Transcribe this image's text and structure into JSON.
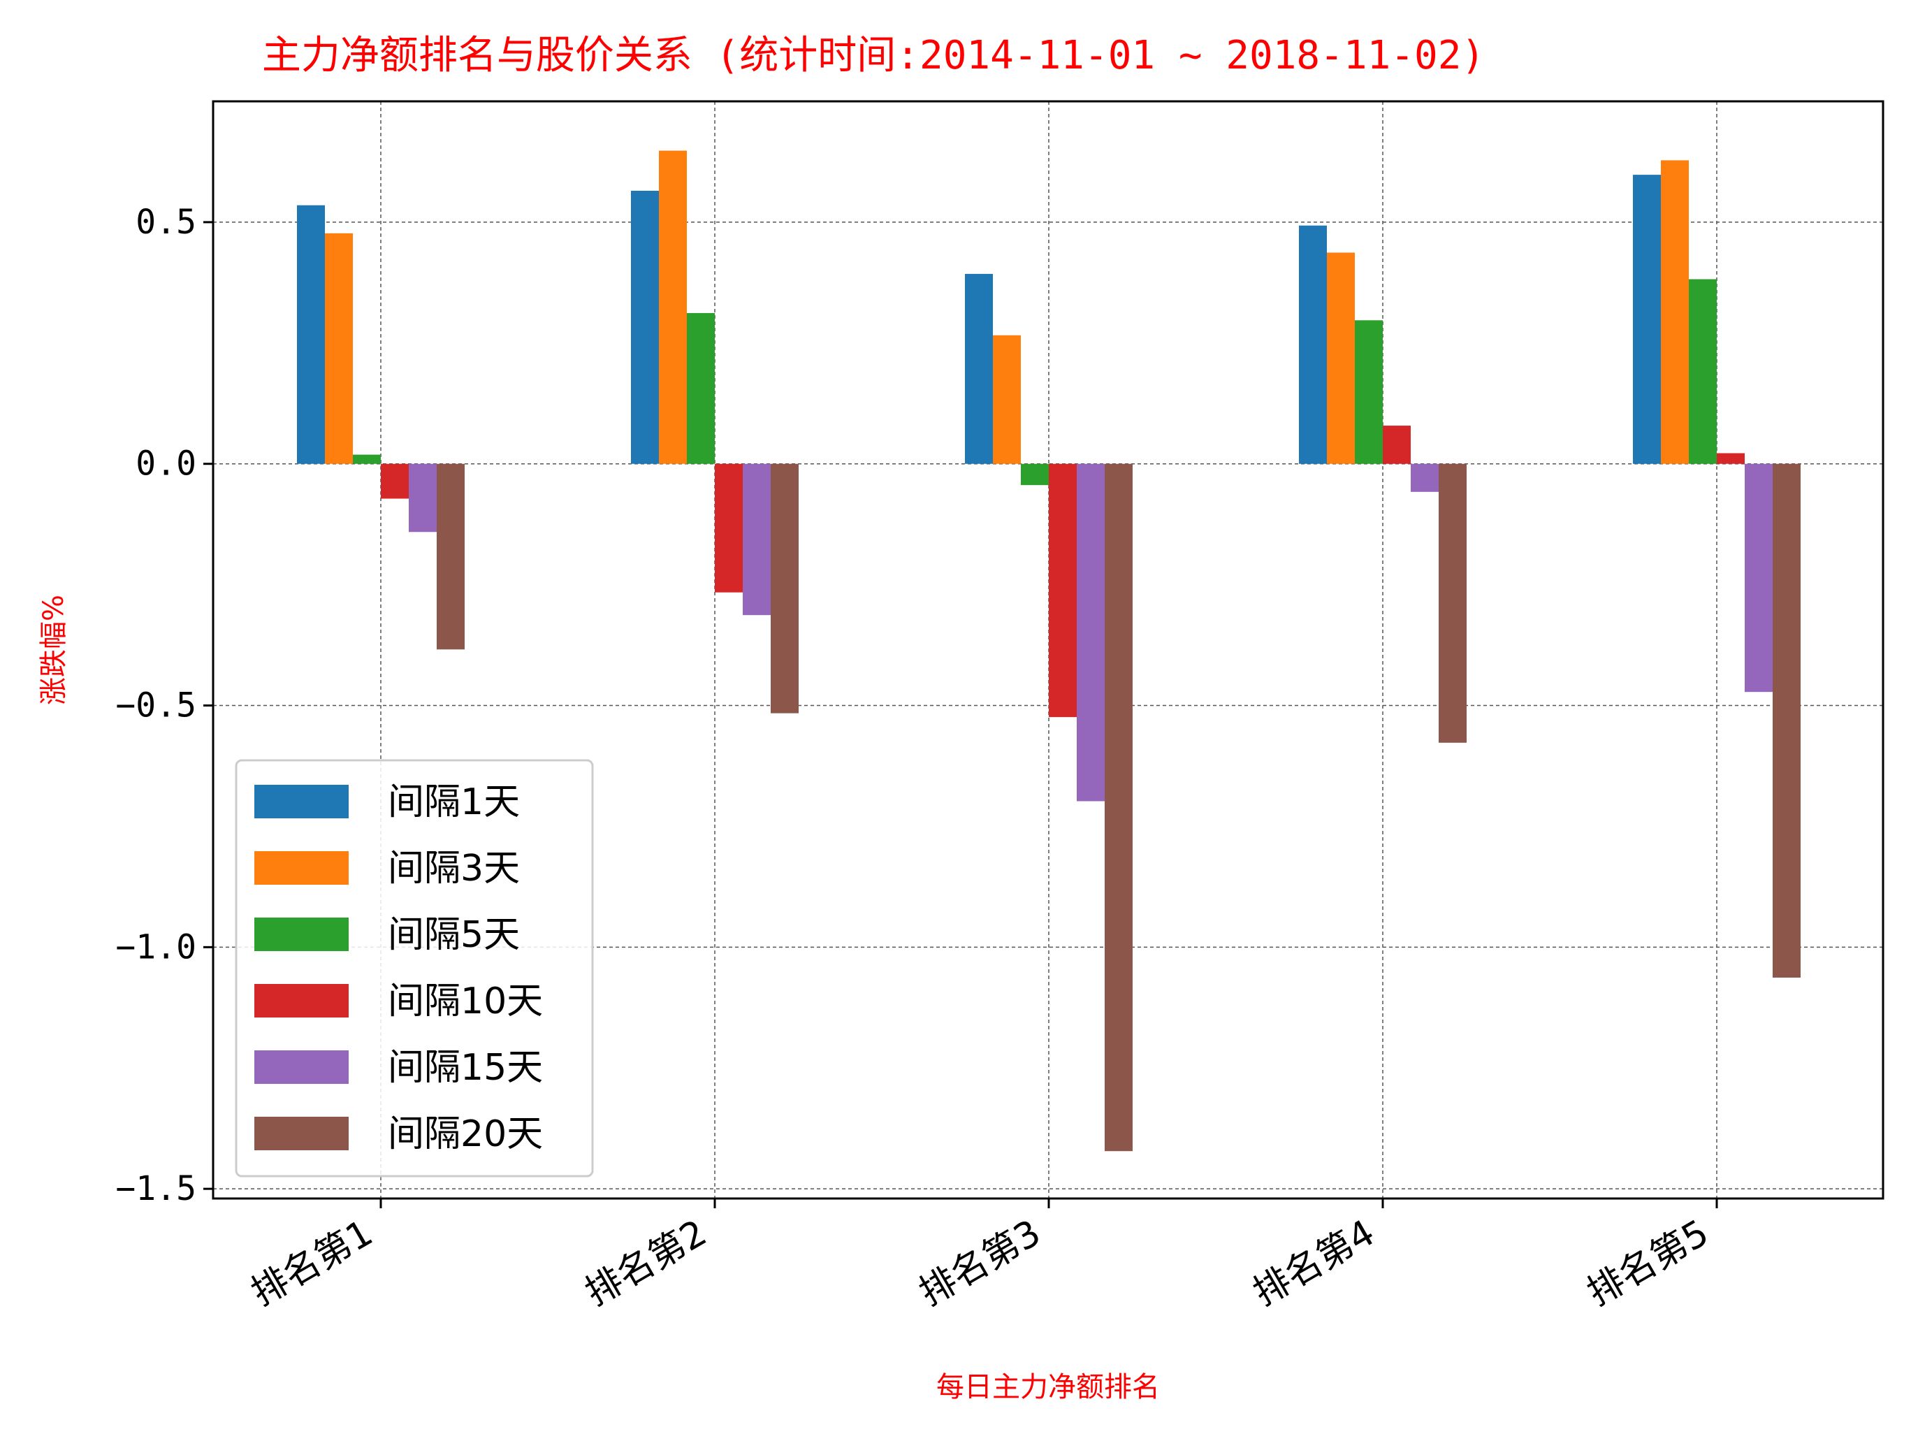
{
  "chart_data": {
    "type": "bar",
    "title": "主力净额排名与股价关系   (统计时间:2014-11-01 ~ 2018-11-02)",
    "xlabel": "每日主力净额排名",
    "ylabel": "涨跌幅%",
    "categories": [
      "排名第1",
      "排名第2",
      "排名第3",
      "排名第4",
      "排名第5"
    ],
    "ylim": [
      -1.52,
      0.75
    ],
    "yticks": [
      0.5,
      0.0,
      -0.5,
      -1.0,
      -1.5
    ],
    "ytick_labels": [
      "0.5",
      "0.0",
      "−0.5",
      "−1.0",
      "−1.5"
    ],
    "grid": true,
    "legend_position": "lower-left",
    "series": [
      {
        "name": "间隔1天",
        "color": "#1f77b4",
        "values": [
          0.535,
          0.565,
          0.393,
          0.493,
          0.598
        ]
      },
      {
        "name": "间隔3天",
        "color": "#ff7f0e",
        "values": [
          0.477,
          0.648,
          0.266,
          0.437,
          0.628
        ]
      },
      {
        "name": "间隔5天",
        "color": "#2ca02c",
        "values": [
          0.019,
          0.312,
          -0.044,
          0.297,
          0.382
        ]
      },
      {
        "name": "间隔10天",
        "color": "#d62728",
        "values": [
          -0.072,
          -0.266,
          -0.524,
          0.079,
          0.022
        ]
      },
      {
        "name": "间隔15天",
        "color": "#9467bd",
        "values": [
          -0.141,
          -0.313,
          -0.698,
          -0.058,
          -0.472
        ]
      },
      {
        "name": "间隔20天",
        "color": "#8c564b",
        "values": [
          -0.384,
          -0.516,
          -1.422,
          -0.577,
          -1.063
        ]
      }
    ]
  }
}
